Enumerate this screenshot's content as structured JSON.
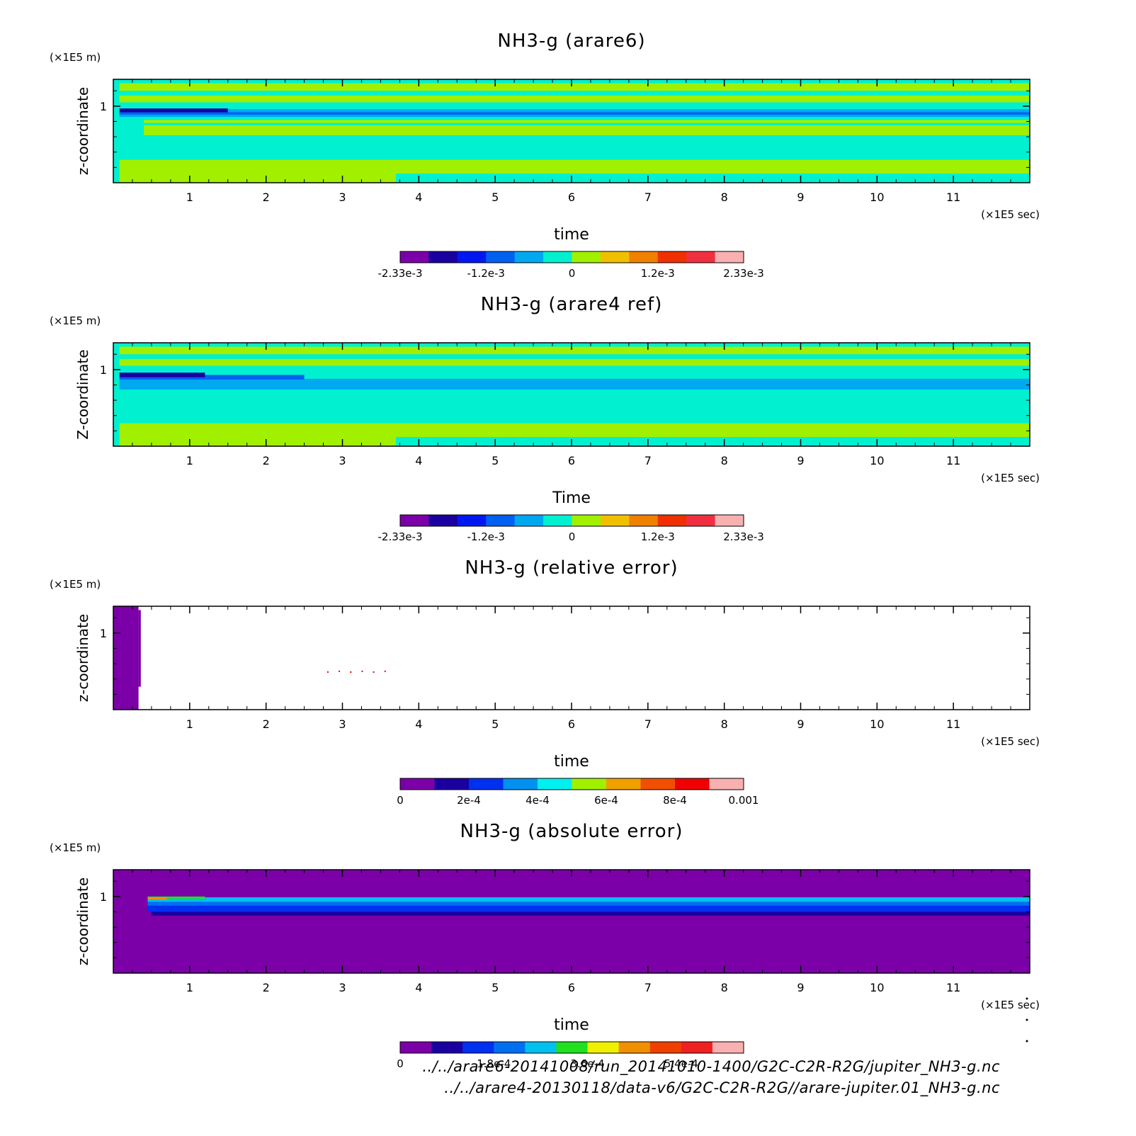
{
  "chart_data": [
    {
      "type": "heatmap",
      "title": "NH3-g (arare6)",
      "xlabel": "time",
      "ylabel": "z-coordinate",
      "x_unit": "(×1E5 sec)",
      "y_unit": "(×1E5 m)",
      "xlim": [
        0,
        12
      ],
      "ylim": [
        0,
        1.35
      ],
      "x_ticks": [
        "1",
        "2",
        "3",
        "4",
        "5",
        "6",
        "7",
        "8",
        "9",
        "10",
        "11"
      ],
      "y_ticks": [
        "1"
      ],
      "colorbar": {
        "colors": [
          "#7b00a8",
          "#1a00a0",
          "#0018f0",
          "#0060f0",
          "#00a8f0",
          "#00f0d0",
          "#a0f000",
          "#f0c000",
          "#f08000",
          "#f03000",
          "#f03040",
          "#f8b0b0"
        ],
        "tick_labels": [
          "-2.33e-3",
          "-1.2e-3",
          "0",
          "1.2e-3",
          "2.33e-3"
        ]
      }
    },
    {
      "type": "heatmap",
      "title": "NH3-g (arare4 ref)",
      "xlabel": "Time",
      "ylabel": "Z-coordinate",
      "x_unit": "(×1E5 sec)",
      "y_unit": "(×1E5 m)",
      "xlim": [
        0,
        12
      ],
      "ylim": [
        0,
        1.35
      ],
      "x_ticks": [
        "1",
        "2",
        "3",
        "4",
        "5",
        "6",
        "7",
        "8",
        "9",
        "10",
        "11"
      ],
      "y_ticks": [
        "1"
      ],
      "colorbar": {
        "colors": [
          "#7b00a8",
          "#1a00a0",
          "#0018f0",
          "#0060f0",
          "#00a8f0",
          "#00f0d0",
          "#a0f000",
          "#f0c000",
          "#f08000",
          "#f03000",
          "#f03040",
          "#f8b0b0"
        ],
        "tick_labels": [
          "-2.33e-3",
          "-1.2e-3",
          "0",
          "1.2e-3",
          "2.33e-3"
        ]
      }
    },
    {
      "type": "heatmap",
      "title": "NH3-g (relative error)",
      "xlabel": "time",
      "ylabel": "z-coordinate",
      "x_unit": "(×1E5 sec)",
      "y_unit": "(×1E5 m)",
      "xlim": [
        0,
        12
      ],
      "ylim": [
        0,
        1.35
      ],
      "x_ticks": [
        "1",
        "2",
        "3",
        "4",
        "5",
        "6",
        "7",
        "8",
        "9",
        "10",
        "11"
      ],
      "y_ticks": [
        "1"
      ],
      "colorbar": {
        "colors": [
          "#7b00a8",
          "#1a00a0",
          "#0030f0",
          "#0090f0",
          "#00f0f0",
          "#a0f000",
          "#f0a000",
          "#f05000",
          "#f00000",
          "#f8b0b0"
        ],
        "tick_labels": [
          "0",
          "2e-4",
          "4e-4",
          "6e-4",
          "8e-4",
          "0.001"
        ]
      }
    },
    {
      "type": "heatmap",
      "title": "NH3-g (absolute error)",
      "xlabel": "time",
      "ylabel": "z-coordinate",
      "x_unit": "(×1E5 sec)",
      "y_unit": "(×1E5 m)",
      "xlim": [
        0,
        12
      ],
      "ylim": [
        0,
        1.35
      ],
      "x_ticks": [
        "1",
        "2",
        "3",
        "4",
        "5",
        "6",
        "7",
        "8",
        "9",
        "10",
        "11"
      ],
      "y_ticks": [
        "1"
      ],
      "colorbar": {
        "colors": [
          "#7b00a8",
          "#1a00a0",
          "#0030f0",
          "#0070f0",
          "#00c0f0",
          "#20e020",
          "#f0f000",
          "#f09000",
          "#f04000",
          "#f02020",
          "#f8b0b0"
        ],
        "tick_labels": [
          "0",
          "1.8e-4",
          "3.6e-4",
          "5.4e-4"
        ]
      }
    }
  ],
  "footer": {
    "line1": "../../arare6-20141008/run_20141010-1400/G2C-C2R-R2G/jupiter_NH3-g.nc",
    "line2": "../../arare4-20130118/data-v6/G2C-C2R-R2G//arare-jupiter.01_NH3-g.nc"
  }
}
